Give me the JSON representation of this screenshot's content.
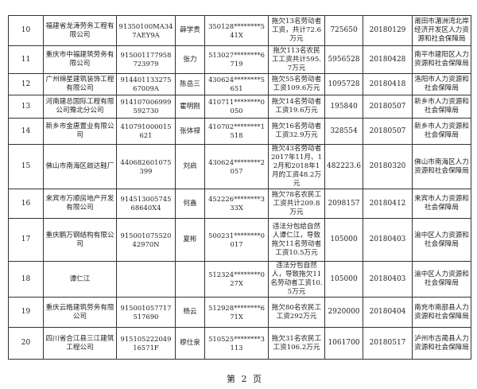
{
  "rows": [
    {
      "no": "10",
      "company": "福建省龙涛劳务工程有限公司",
      "code": "91350100MA347AEY9A",
      "person": "薛学贵",
      "id": "350128********541X",
      "desc": "拖欠13名劳动者工资，共计72.6万元",
      "amount": "725650",
      "date": "20180129",
      "authority": "莆田市湄洲湾北岸经济开发区人力资源和社会保障局"
    },
    {
      "no": "11",
      "company": "重庆市中福建筑劳务有限公司",
      "code": "915001177958723979",
      "person": "张力",
      "id": "513027********6719",
      "desc": "拖欠113名农民工工资共计595.7万元",
      "amount": "5956528",
      "date": "20180428",
      "authority": "南平市建阳区人力资源和社会保障局"
    },
    {
      "no": "12",
      "company": "广州绵星建筑装饰工程有限公司",
      "code": "91440113327567009A",
      "person": "陈岳三",
      "id": "430624********5651",
      "desc": "拖欠55名劳动者工资109.6万元",
      "amount": "1095728",
      "date": "20180418",
      "authority": "洛阳市人力资源和社会保障局"
    },
    {
      "no": "13",
      "company": "河南建总国际工程有限公司豫北分公司",
      "code": "914107006999592730",
      "person": "霍明刚",
      "id": "410711********0050",
      "desc": "拖欠14名劳动者工资19.6万元",
      "amount": "195840",
      "date": "20180507",
      "authority": "新乡市人力资源和社会保障局"
    },
    {
      "no": "14",
      "company": "新乡市金唐置业有限公司",
      "code": "410791000015621",
      "person": "张体禄",
      "id": "410702********1518",
      "desc": "拖欠16名劳动者工资32.9万元",
      "amount": "328554",
      "date": "20180507",
      "authority": "新乡市人力资源和社会保障局"
    },
    {
      "no": "15",
      "company": "佛山市南海区啟达鞋厂",
      "code": "440682601075399",
      "person": "刘启",
      "id": "430624********2057",
      "desc": "拖欠43名劳动者2017年11月、12月和2018年1月的工资48.2万元",
      "amount": "482223.6",
      "date": "20180320",
      "authority": "佛山市南海区人力资源和社会保障局"
    },
    {
      "no": "16",
      "company": "来宾市万顺房地产开发有限公司",
      "code": "91451300574568640X4",
      "person": "何鑫",
      "id": "452226********333X",
      "desc": "拖欠78名农民工工资共计209.8万元",
      "amount": "2098157",
      "date": "20180412",
      "authority": "来宾市人力资源和社会保障局"
    },
    {
      "no": "17",
      "company": "重庆鹏万钢结构有限公司",
      "code": "91500107552042970N",
      "person": "夏彬",
      "id": "500231********0017",
      "desc": "违法分包给自然人谭仁江，导致拖欠11名劳动者工资10.5万元",
      "amount": "105000",
      "date": "20180403",
      "authority": "渝中区人力资源和社会保障局"
    },
    {
      "no": "18",
      "company": "谭仁江",
      "code": "",
      "person": "",
      "id": "512324********027X",
      "desc": "违法分包自然人，导致拖欠11名劳动者工资10.5万元",
      "amount": "105000",
      "date": "20180403",
      "authority": "渝中区人力资源和社会保障局"
    },
    {
      "no": "19",
      "company": "重庆云皓建筑劳务有限公司",
      "code": "915001057717517690",
      "person": "杨云",
      "id": "512928********671X",
      "desc": "拖欠80名农民工工资292万元",
      "amount": "2920000",
      "date": "20180404",
      "authority": "南充市南部县人力资源和社会保障局"
    },
    {
      "no": "20",
      "company": "四川省合江县三江建筑工程公司",
      "code": "91510522204916571F",
      "person": "穆仕泉",
      "id": "510525********3113",
      "desc": "拖欠31名农民工工资106.2万元",
      "amount": "1061700",
      "date": "20180517",
      "authority": "泸州市古蔺县人力资源和社会保障局"
    }
  ],
  "footer": {
    "page_label": "第 2 页"
  }
}
